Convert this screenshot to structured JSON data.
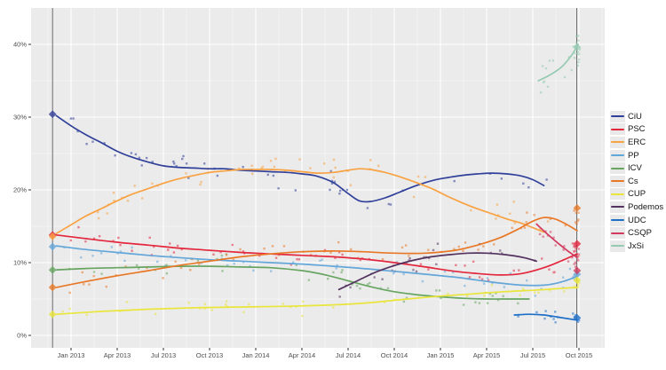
{
  "chart_data": {
    "type": "scatter",
    "title": "",
    "xlabel": "",
    "ylabel": "",
    "grid": true,
    "legend_position": "right",
    "x_axis": {
      "tick_labels": [
        "Jan 2013",
        "Apr 2013",
        "Jul 2013",
        "Oct 2013",
        "Jan 2014",
        "Apr 2014",
        "Jul 2014",
        "Oct 2014",
        "Jan 2015",
        "Apr 2015",
        "Jul 2015",
        "Oct 2015"
      ],
      "tick_positions": [
        2013.0,
        2013.25,
        2013.5,
        2013.75,
        2014.0,
        2014.25,
        2014.5,
        2014.75,
        2015.0,
        2015.25,
        2015.5,
        2015.75
      ],
      "range": [
        2012.78,
        2015.885
      ]
    },
    "y_axis": {
      "tick_labels": [
        "0%",
        "10%",
        "20%",
        "30%",
        "40%"
      ],
      "tick_values": [
        0,
        10,
        20,
        30,
        40
      ],
      "minor_values": [
        5,
        15,
        25,
        35
      ],
      "range": [
        0,
        43
      ]
    },
    "event_lines": [
      2012.9,
      2015.738
    ],
    "colors": {
      "plot_bg": "#EBEBEB",
      "grid_major": "#FFFFFF",
      "grid_minor": "#F6F6F6",
      "axis_text": "#4D4D4D",
      "tick_mark": "#333333",
      "event_line": "#6B6B6B",
      "legend_text": "#141414"
    },
    "series": [
      {
        "name": "CiU",
        "color": "#30409A",
        "line": [
          [
            2012.92,
            30.2
          ],
          [
            2013.0,
            28.8
          ],
          [
            2013.08,
            27.6
          ],
          [
            2013.17,
            26.4
          ],
          [
            2013.25,
            25.3
          ],
          [
            2013.33,
            24.5
          ],
          [
            2013.42,
            23.8
          ],
          [
            2013.5,
            23.3
          ],
          [
            2013.58,
            23.1
          ],
          [
            2013.67,
            23.0
          ],
          [
            2013.75,
            22.9
          ],
          [
            2013.83,
            22.9
          ],
          [
            2013.92,
            22.7
          ],
          [
            2014.0,
            22.6
          ],
          [
            2014.08,
            22.5
          ],
          [
            2014.17,
            22.4
          ],
          [
            2014.25,
            22.2
          ],
          [
            2014.33,
            21.9
          ],
          [
            2014.42,
            21.0
          ],
          [
            2014.5,
            19.5
          ],
          [
            2014.56,
            18.5
          ],
          [
            2014.62,
            18.4
          ],
          [
            2014.7,
            18.9
          ],
          [
            2014.78,
            19.7
          ],
          [
            2014.87,
            20.6
          ],
          [
            2014.96,
            21.3
          ],
          [
            2015.04,
            21.7
          ],
          [
            2015.12,
            22.0
          ],
          [
            2015.2,
            22.2
          ],
          [
            2015.28,
            22.3
          ],
          [
            2015.36,
            22.2
          ],
          [
            2015.44,
            21.9
          ],
          [
            2015.5,
            21.4
          ],
          [
            2015.56,
            20.6
          ]
        ],
        "diamonds": [
          [
            2012.9,
            30.4
          ]
        ],
        "scatter": {
          "n": 48,
          "from": 2012.95,
          "to": 2015.58,
          "sigma": 1.6
        },
        "end_cluster": null
      },
      {
        "name": "PSC",
        "color": "#E3273D",
        "line": [
          [
            2012.92,
            13.8
          ],
          [
            2013.08,
            13.3
          ],
          [
            2013.25,
            12.8
          ],
          [
            2013.42,
            12.4
          ],
          [
            2013.58,
            12.0
          ],
          [
            2013.75,
            11.7
          ],
          [
            2013.92,
            11.4
          ],
          [
            2014.08,
            11.2
          ],
          [
            2014.25,
            11.0
          ],
          [
            2014.42,
            10.8
          ],
          [
            2014.58,
            10.5
          ],
          [
            2014.75,
            10.0
          ],
          [
            2014.92,
            9.4
          ],
          [
            2015.08,
            8.8
          ],
          [
            2015.2,
            8.5
          ],
          [
            2015.32,
            8.3
          ],
          [
            2015.44,
            8.5
          ],
          [
            2015.56,
            9.3
          ],
          [
            2015.65,
            10.2
          ],
          [
            2015.74,
            11.2
          ]
        ],
        "diamonds": [
          [
            2012.9,
            13.8
          ],
          [
            2015.74,
            12.6
          ]
        ],
        "scatter": {
          "n": 52,
          "from": 2012.95,
          "to": 2015.72,
          "sigma": 1.2
        },
        "end_cluster": {
          "n": 7,
          "x": 2015.73,
          "y": 12.2,
          "sigma": 1.0
        }
      },
      {
        "name": "ERC",
        "color": "#F9A242",
        "line": [
          [
            2012.92,
            14.0
          ],
          [
            2013.0,
            15.2
          ],
          [
            2013.08,
            16.4
          ],
          [
            2013.17,
            17.5
          ],
          [
            2013.25,
            18.5
          ],
          [
            2013.33,
            19.4
          ],
          [
            2013.42,
            20.2
          ],
          [
            2013.5,
            20.9
          ],
          [
            2013.58,
            21.5
          ],
          [
            2013.67,
            22.0
          ],
          [
            2013.75,
            22.4
          ],
          [
            2013.83,
            22.6
          ],
          [
            2013.92,
            22.8
          ],
          [
            2014.0,
            22.8
          ],
          [
            2014.08,
            22.8
          ],
          [
            2014.17,
            22.7
          ],
          [
            2014.25,
            22.5
          ],
          [
            2014.33,
            22.3
          ],
          [
            2014.42,
            22.4
          ],
          [
            2014.5,
            22.7
          ],
          [
            2014.56,
            22.9
          ],
          [
            2014.62,
            22.8
          ],
          [
            2014.7,
            22.4
          ],
          [
            2014.78,
            21.8
          ],
          [
            2014.87,
            21.0
          ],
          [
            2014.96,
            20.1
          ],
          [
            2015.04,
            19.1
          ],
          [
            2015.12,
            18.2
          ],
          [
            2015.2,
            17.4
          ],
          [
            2015.28,
            16.7
          ],
          [
            2015.36,
            16.0
          ],
          [
            2015.44,
            15.4
          ],
          [
            2015.5,
            14.8
          ],
          [
            2015.56,
            14.2
          ]
        ],
        "diamonds": [
          [
            2012.9,
            13.6
          ]
        ],
        "scatter": {
          "n": 50,
          "from": 2012.95,
          "to": 2015.6,
          "sigma": 1.5
        },
        "end_cluster": null
      },
      {
        "name": "PP",
        "color": "#63A6D9",
        "line": [
          [
            2012.92,
            12.3
          ],
          [
            2013.08,
            11.8
          ],
          [
            2013.25,
            11.4
          ],
          [
            2013.42,
            11.0
          ],
          [
            2013.58,
            10.7
          ],
          [
            2013.75,
            10.4
          ],
          [
            2013.92,
            10.2
          ],
          [
            2014.08,
            10.0
          ],
          [
            2014.25,
            9.8
          ],
          [
            2014.42,
            9.5
          ],
          [
            2014.58,
            9.2
          ],
          [
            2014.75,
            8.8
          ],
          [
            2014.92,
            8.4
          ],
          [
            2015.08,
            8.0
          ],
          [
            2015.2,
            7.6
          ],
          [
            2015.32,
            7.2
          ],
          [
            2015.44,
            6.9
          ],
          [
            2015.56,
            6.9
          ],
          [
            2015.65,
            7.3
          ],
          [
            2015.74,
            8.1
          ]
        ],
        "diamonds": [
          [
            2012.9,
            12.2
          ],
          [
            2015.74,
            8.4
          ]
        ],
        "scatter": {
          "n": 48,
          "from": 2012.95,
          "to": 2015.72,
          "sigma": 1.1
        },
        "end_cluster": {
          "n": 6,
          "x": 2015.73,
          "y": 8.3,
          "sigma": 0.8
        }
      },
      {
        "name": "ICV",
        "color": "#67A561",
        "line": [
          [
            2012.92,
            9.0
          ],
          [
            2013.08,
            9.2
          ],
          [
            2013.25,
            9.3
          ],
          [
            2013.42,
            9.4
          ],
          [
            2013.58,
            9.5
          ],
          [
            2013.75,
            9.5
          ],
          [
            2013.92,
            9.4
          ],
          [
            2014.08,
            9.3
          ],
          [
            2014.25,
            8.9
          ],
          [
            2014.38,
            8.3
          ],
          [
            2014.5,
            7.5
          ],
          [
            2014.62,
            6.7
          ],
          [
            2014.75,
            6.0
          ],
          [
            2014.87,
            5.6
          ],
          [
            2015.0,
            5.3
          ],
          [
            2015.12,
            5.1
          ],
          [
            2015.25,
            5.0
          ],
          [
            2015.38,
            5.0
          ],
          [
            2015.48,
            5.0
          ]
        ],
        "diamonds": [
          [
            2012.9,
            9.0
          ]
        ],
        "scatter": {
          "n": 42,
          "from": 2012.95,
          "to": 2015.5,
          "sigma": 1.1
        },
        "end_cluster": null
      },
      {
        "name": "Cs",
        "color": "#E97826",
        "line": [
          [
            2012.92,
            6.6
          ],
          [
            2013.08,
            7.4
          ],
          [
            2013.25,
            8.2
          ],
          [
            2013.42,
            8.9
          ],
          [
            2013.58,
            9.6
          ],
          [
            2013.75,
            10.2
          ],
          [
            2013.92,
            10.8
          ],
          [
            2014.08,
            11.2
          ],
          [
            2014.25,
            11.5
          ],
          [
            2014.42,
            11.6
          ],
          [
            2014.58,
            11.5
          ],
          [
            2014.75,
            11.3
          ],
          [
            2014.92,
            11.3
          ],
          [
            2015.08,
            11.7
          ],
          [
            2015.2,
            12.4
          ],
          [
            2015.32,
            13.4
          ],
          [
            2015.42,
            14.6
          ],
          [
            2015.5,
            15.7
          ],
          [
            2015.56,
            16.2
          ],
          [
            2015.62,
            16.0
          ],
          [
            2015.68,
            15.3
          ],
          [
            2015.74,
            14.4
          ]
        ],
        "diamonds": [
          [
            2012.9,
            6.6
          ],
          [
            2015.74,
            17.5
          ]
        ],
        "scatter": {
          "n": 50,
          "from": 2012.95,
          "to": 2015.72,
          "sigma": 1.2
        },
        "end_cluster": {
          "n": 8,
          "x": 2015.73,
          "y": 16.3,
          "sigma": 1.3
        }
      },
      {
        "name": "CUP",
        "color": "#E9E53B",
        "line": [
          [
            2012.92,
            2.9
          ],
          [
            2013.17,
            3.3
          ],
          [
            2013.42,
            3.6
          ],
          [
            2013.67,
            3.8
          ],
          [
            2013.92,
            3.9
          ],
          [
            2014.17,
            4.0
          ],
          [
            2014.42,
            4.2
          ],
          [
            2014.62,
            4.5
          ],
          [
            2014.82,
            5.0
          ],
          [
            2015.0,
            5.4
          ],
          [
            2015.17,
            5.7
          ],
          [
            2015.34,
            6.0
          ],
          [
            2015.5,
            6.2
          ],
          [
            2015.62,
            6.4
          ],
          [
            2015.74,
            6.6
          ]
        ],
        "diamonds": [
          [
            2012.9,
            2.9
          ],
          [
            2015.74,
            7.6
          ]
        ],
        "scatter": {
          "n": 38,
          "from": 2012.95,
          "to": 2015.72,
          "sigma": 0.9
        },
        "end_cluster": {
          "n": 8,
          "x": 2015.73,
          "y": 7.0,
          "sigma": 0.8
        }
      },
      {
        "name": "Podemos",
        "color": "#53325F",
        "line": [
          [
            2014.45,
            6.3
          ],
          [
            2014.55,
            7.5
          ],
          [
            2014.65,
            8.7
          ],
          [
            2014.75,
            9.6
          ],
          [
            2014.85,
            10.3
          ],
          [
            2014.95,
            10.8
          ],
          [
            2015.05,
            11.1
          ],
          [
            2015.15,
            11.3
          ],
          [
            2015.25,
            11.3
          ],
          [
            2015.35,
            11.1
          ],
          [
            2015.45,
            10.7
          ],
          [
            2015.52,
            10.2
          ]
        ],
        "diamonds": [],
        "scatter": {
          "n": 22,
          "from": 2014.45,
          "to": 2015.52,
          "sigma": 1.2
        },
        "end_cluster": null
      },
      {
        "name": "UDC",
        "color": "#1F6FC8",
        "line": [
          [
            2015.4,
            2.8
          ],
          [
            2015.48,
            2.9
          ],
          [
            2015.56,
            2.8
          ],
          [
            2015.64,
            2.5
          ],
          [
            2015.74,
            2.1
          ]
        ],
        "diamonds": [
          [
            2015.74,
            2.4
          ]
        ],
        "scatter": {
          "n": 10,
          "from": 2015.42,
          "to": 2015.74,
          "sigma": 0.7
        },
        "end_cluster": {
          "n": 6,
          "x": 2015.73,
          "y": 2.3,
          "sigma": 0.6
        }
      },
      {
        "name": "CSQP",
        "color": "#D13A5E",
        "line": [
          [
            2015.52,
            15.3
          ],
          [
            2015.58,
            13.9
          ],
          [
            2015.64,
            12.6
          ],
          [
            2015.69,
            11.6
          ],
          [
            2015.74,
            10.7
          ]
        ],
        "diamonds": [
          [
            2015.74,
            8.9
          ]
        ],
        "scatter": {
          "n": 16,
          "from": 2015.5,
          "to": 2015.76,
          "sigma": 1.6
        },
        "end_cluster": {
          "n": 10,
          "x": 2015.73,
          "y": 11.0,
          "sigma": 1.6
        }
      },
      {
        "name": "JxSi",
        "color": "#96CBB3",
        "line": [
          [
            2015.53,
            35.0
          ],
          [
            2015.6,
            35.9
          ],
          [
            2015.66,
            37.0
          ],
          [
            2015.71,
            38.5
          ],
          [
            2015.745,
            40.0
          ]
        ],
        "diamonds": [
          [
            2015.74,
            39.6
          ]
        ],
        "scatter": {
          "n": 14,
          "from": 2015.53,
          "to": 2015.76,
          "sigma": 2.4
        },
        "end_cluster": {
          "n": 14,
          "x": 2015.73,
          "y": 39.0,
          "sigma": 2.2
        }
      }
    ]
  }
}
